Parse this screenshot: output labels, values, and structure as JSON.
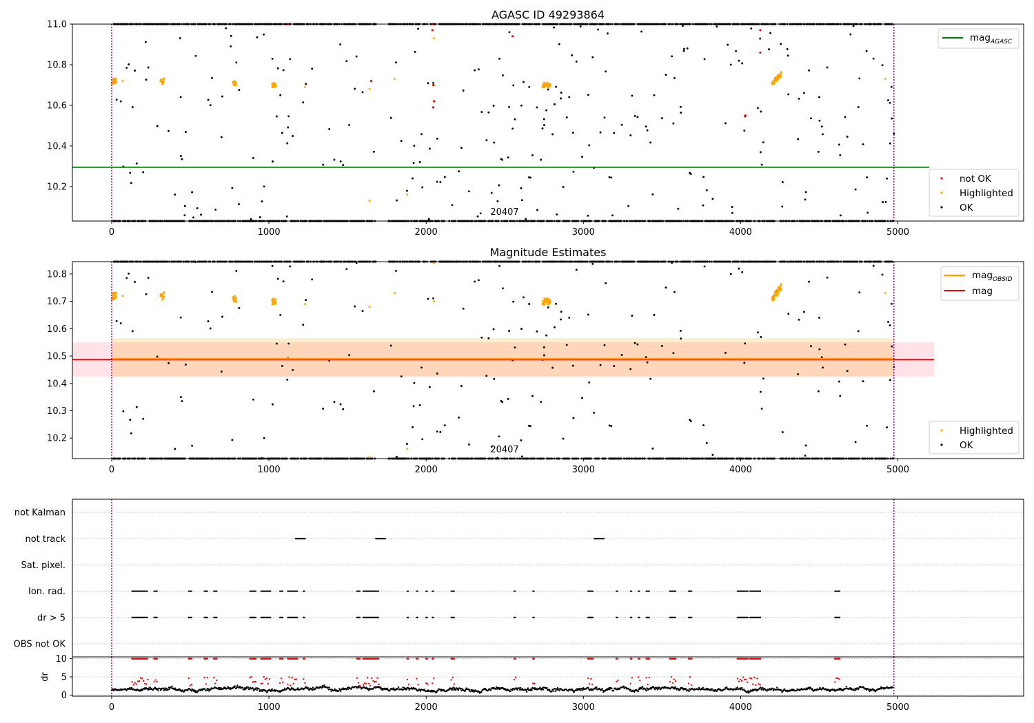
{
  "titles": {
    "top": "AGASC ID 49293864",
    "middle": "Magnitude Estimates"
  },
  "obsid_label": "20407",
  "colors": {
    "not_ok": "#ff0000",
    "highlighted": "#ffa500",
    "ok": "#000000",
    "agasc_line": "#008000",
    "obsid_line": "#ffa500",
    "mag_line": "#ff0000",
    "obsid_band": "#ffa500",
    "mag_band": "#ffc0cb",
    "vline": "#800080",
    "grid": "#b0b0b0"
  },
  "chart_data": [
    {
      "type": "scatter",
      "name": "top",
      "title": "AGASC ID 49293864",
      "xlim": [
        -250,
        5800
      ],
      "ylim": [
        10.03,
        11.0
      ],
      "xticks": [
        0,
        1000,
        2000,
        3000,
        4000,
        5000
      ],
      "yticks": [
        10.2,
        10.4,
        10.6,
        10.8,
        11.0
      ],
      "ytick_labels": [
        "10.2",
        "10.4",
        "10.6",
        "10.8",
        "11.0"
      ],
      "mag_agasc": 10.295,
      "mag_agasc_x": [
        -250,
        5200
      ],
      "obsid_bounds": [
        0,
        4975
      ],
      "legend_lines": [
        {
          "label": "mag",
          "sub": "AGASC"
        }
      ],
      "legend_points": [
        "not OK",
        "Highlighted",
        "OK"
      ],
      "not_ok_points": [
        [
          1120,
          11.0
        ],
        [
          2040,
          11.0
        ],
        [
          2040,
          10.97
        ],
        [
          2045,
          10.7
        ],
        [
          2050,
          10.62
        ],
        [
          2045,
          10.59
        ],
        [
          2550,
          10.94
        ],
        [
          1650,
          10.72
        ],
        [
          4125,
          10.97
        ],
        [
          4125,
          10.86
        ],
        [
          4030,
          10.55
        ]
      ],
      "highlighted_points": [
        [
          1640,
          10.13
        ],
        [
          1880,
          10.16
        ],
        [
          2050,
          10.93
        ],
        [
          2050,
          10.7
        ],
        [
          1640,
          10.68
        ],
        [
          1800,
          10.73
        ],
        [
          4920,
          10.73
        ],
        [
          1230,
          10.69
        ],
        [
          70,
          10.72
        ]
      ]
    },
    {
      "type": "scatter",
      "name": "middle",
      "title": "Magnitude Estimates",
      "xlim": [
        -250,
        5800
      ],
      "ylim": [
        10.125,
        10.845
      ],
      "xticks": [
        0,
        1000,
        2000,
        3000,
        4000,
        5000
      ],
      "yticks": [
        10.2,
        10.3,
        10.4,
        10.5,
        10.6,
        10.7,
        10.8
      ],
      "ytick_labels": [
        "10.2",
        "10.3",
        "10.4",
        "10.5",
        "10.6",
        "10.7",
        "10.8"
      ],
      "mag_obsid": 10.49,
      "mag_obsid_band": [
        10.425,
        10.565
      ],
      "mag_obsid_x": [
        0,
        4975
      ],
      "mag": 10.487,
      "mag_band": [
        10.425,
        10.55
      ],
      "mag_x": [
        -250,
        5230
      ],
      "obsid_bounds": [
        0,
        4975
      ],
      "legend_lines": [
        {
          "label": "mag",
          "sub": "OBSID"
        },
        {
          "label": "mag",
          "sub": ""
        }
      ],
      "legend_points": [
        "Highlighted",
        "OK"
      ],
      "highlighted_points": [
        [
          1640,
          10.13
        ],
        [
          1880,
          10.16
        ],
        [
          2050,
          10.84
        ],
        [
          2050,
          10.7
        ],
        [
          1640,
          10.68
        ],
        [
          1800,
          10.73
        ],
        [
          4920,
          10.73
        ],
        [
          1230,
          10.69
        ],
        [
          70,
          10.72
        ]
      ]
    },
    {
      "type": "scatter",
      "name": "flags",
      "xlim": [
        -250,
        5800
      ],
      "ylim": [
        -0.5,
        5.5
      ],
      "categories": [
        "OBS not OK",
        "dr > 5",
        "Ion. rad.",
        "Sat. pixel.",
        "not track",
        "not Kalman"
      ],
      "obsid_bounds": [
        0,
        4975
      ],
      "not_track_ranges": [
        [
          1170,
          1230
        ],
        [
          1680,
          1740
        ],
        [
          3070,
          3130
        ]
      ],
      "flag_ranges": [
        [
          130,
          230
        ],
        [
          270,
          290
        ],
        [
          490,
          510
        ],
        [
          590,
          610
        ],
        [
          650,
          670
        ],
        [
          880,
          920
        ],
        [
          950,
          1010
        ],
        [
          1070,
          1090
        ],
        [
          1120,
          1180
        ],
        [
          1220,
          1230
        ],
        [
          1560,
          1580
        ],
        [
          1600,
          1700
        ],
        [
          1880,
          1890
        ],
        [
          1940,
          1950
        ],
        [
          2000,
          2010
        ],
        [
          2040,
          2050
        ],
        [
          2160,
          2180
        ],
        [
          2560,
          2570
        ],
        [
          2680,
          2690
        ],
        [
          3030,
          3060
        ],
        [
          3210,
          3220
        ],
        [
          3300,
          3310
        ],
        [
          3350,
          3360
        ],
        [
          3400,
          3420
        ],
        [
          3550,
          3590
        ],
        [
          3670,
          3690
        ],
        [
          3980,
          4050
        ],
        [
          4060,
          4130
        ],
        [
          4600,
          4630
        ]
      ]
    },
    {
      "type": "scatter",
      "name": "dr",
      "ylabel": "dr",
      "xlim": [
        -250,
        5800
      ],
      "ylim": [
        -0.3,
        10.5
      ],
      "xticks": [
        0,
        1000,
        2000,
        3000,
        4000,
        5000
      ],
      "yticks": [
        0,
        5,
        10
      ],
      "ytick_labels": [
        "0",
        "5",
        "10"
      ],
      "obsid_bounds": [
        0,
        4975
      ]
    }
  ]
}
